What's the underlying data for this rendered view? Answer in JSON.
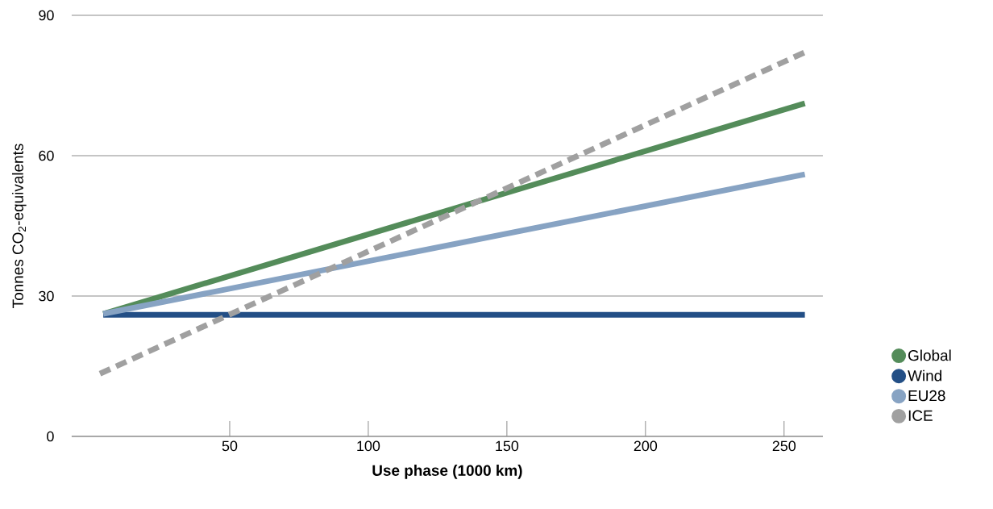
{
  "chart_data": {
    "type": "line",
    "xlabel": "Use phase (1000 km)",
    "ylabel": "Tonnes CO$_{2}$-equivalents",
    "xlim": [
      -7,
      264
    ],
    "ylim": [
      0,
      90
    ],
    "xticks": [
      50,
      100,
      150,
      200,
      250
    ],
    "yticks": [
      0,
      30,
      60,
      90
    ],
    "grid": "y",
    "legend": "right",
    "series": [
      {
        "name": "Global",
        "color": "#548c5a",
        "x": [
          4.4,
          257.5
        ],
        "values": [
          26.2,
          71.2
        ],
        "line_style": "solid"
      },
      {
        "name": "Wind",
        "color": "#234f86",
        "x": [
          4.4,
          257.5
        ],
        "values": [
          26.0,
          26.0
        ],
        "line_style": "solid"
      },
      {
        "name": "EU28",
        "color": "#87a3c3",
        "x": [
          4.4,
          257.5
        ],
        "values": [
          26.2,
          56.0
        ],
        "line_style": "solid"
      },
      {
        "name": "ICE",
        "color": "#a0a0a0",
        "x": [
          3.2,
          257.5
        ],
        "values": [
          13.4,
          82.1
        ],
        "line_style": "dashed"
      }
    ]
  }
}
